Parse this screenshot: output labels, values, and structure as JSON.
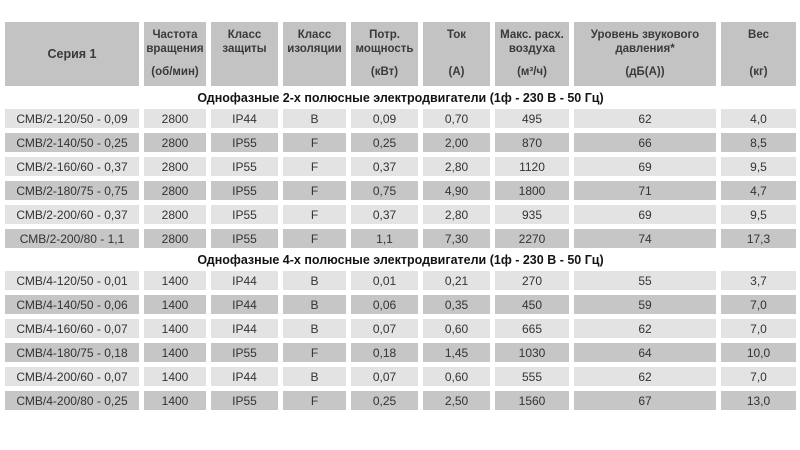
{
  "table": {
    "series_header": "Серия 1",
    "columns": [
      {
        "label": "Частота вращения",
        "unit": "(об/мин)"
      },
      {
        "label": "Класс защиты",
        "unit": ""
      },
      {
        "label": "Класс изоляции",
        "unit": ""
      },
      {
        "label": "Потр. мощность",
        "unit": "(кВт)"
      },
      {
        "label": "Ток",
        "unit": "(А)"
      },
      {
        "label": "Макс. расх. воздуха",
        "unit": "(м³/ч)"
      },
      {
        "label": "Уровень звукового давления*",
        "unit": "(дБ(А))"
      },
      {
        "label": "Вес",
        "unit": "(кг)"
      }
    ],
    "sections": [
      {
        "title": "Однофазные 2-х полюсные электродвигатели (1ф - 230 В - 50 Гц)",
        "rows": [
          [
            "СМВ/2-120/50 - 0,09",
            "2800",
            "IP44",
            "В",
            "0,09",
            "0,70",
            "495",
            "62",
            "4,0"
          ],
          [
            "СМВ/2-140/50 - 0,25",
            "2800",
            "IP55",
            "F",
            "0,25",
            "2,00",
            "870",
            "66",
            "8,5"
          ],
          [
            "СМВ/2-160/60 - 0,37",
            "2800",
            "IP55",
            "F",
            "0,37",
            "2,80",
            "1120",
            "69",
            "9,5"
          ],
          [
            "СМВ/2-180/75 - 0,75",
            "2800",
            "IP55",
            "F",
            "0,75",
            "4,90",
            "1800",
            "71",
            "4,7"
          ],
          [
            "СМВ/2-200/60 - 0,37",
            "2800",
            "IP55",
            "F",
            "0,37",
            "2,80",
            "935",
            "69",
            "9,5"
          ],
          [
            "СМВ/2-200/80 - 1,1",
            "2800",
            "IP55",
            "F",
            "1,1",
            "7,30",
            "2270",
            "74",
            "17,3"
          ]
        ]
      },
      {
        "title": "Однофазные 4-х полюсные электродвигатели (1ф - 230 В - 50 Гц)",
        "rows": [
          [
            "СМВ/4-120/50 - 0,01",
            "1400",
            "IP44",
            "В",
            "0,01",
            "0,21",
            "270",
            "55",
            "3,7"
          ],
          [
            "СМВ/4-140/50 - 0,06",
            "1400",
            "IP44",
            "В",
            "0,06",
            "0,35",
            "450",
            "59",
            "7,0"
          ],
          [
            "СМВ/4-160/60 - 0,07",
            "1400",
            "IP44",
            "В",
            "0,07",
            "0,60",
            "665",
            "62",
            "7,0"
          ],
          [
            "СМВ/4-180/75 - 0,18",
            "1400",
            "IP55",
            "F",
            "0,18",
            "1,45",
            "1030",
            "64",
            "10,0"
          ],
          [
            "СМВ/4-200/60 - 0,07",
            "1400",
            "IP44",
            "В",
            "0,07",
            "0,60",
            "555",
            "62",
            "7,0"
          ],
          [
            "СМВ/4-200/80 - 0,25",
            "1400",
            "IP55",
            "F",
            "0,25",
            "2,50",
            "1560",
            "67",
            "13,0"
          ]
        ]
      }
    ],
    "colors": {
      "header_bg": "#c3c3c3",
      "row_light": "#e3e3e3",
      "row_dark": "#c6c6c6",
      "text": "#333333"
    }
  }
}
